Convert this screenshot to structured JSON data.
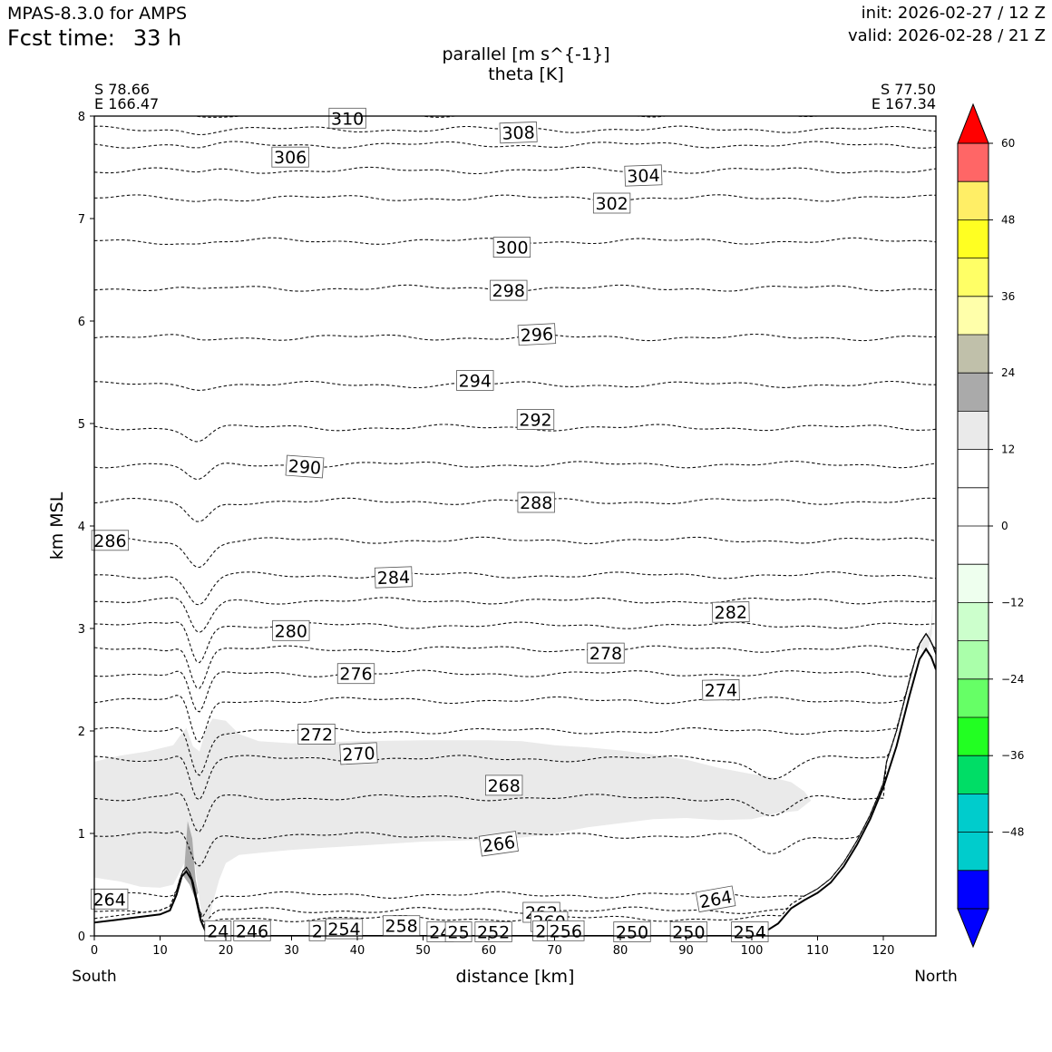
{
  "header": {
    "model": "MPAS-8.3.0 for AMPS",
    "fcst_label": "Fcst time:",
    "fcst_value": "33 h",
    "init": "init: 2026-02-27 / 12 Z",
    "valid": "valid: 2026-02-28 / 21 Z"
  },
  "chart_data": {
    "type": "contour",
    "title_line1": "parallel [m s^{-1}]",
    "title_line2": "theta [K]",
    "xlabel": "distance [km]",
    "ylabel": "km MSL",
    "xlim": [
      0,
      128
    ],
    "ylim": [
      0,
      8
    ],
    "xticks": [
      0,
      10,
      20,
      30,
      40,
      50,
      60,
      70,
      80,
      90,
      100,
      110,
      120
    ],
    "yticks": [
      0,
      1,
      2,
      3,
      4,
      5,
      6,
      7,
      8
    ],
    "start_point": {
      "lat": "S 78.66",
      "lon": "E 166.47",
      "end_label": "South"
    },
    "end_point": {
      "lat": "S 77.50",
      "lon": "E 167.34",
      "end_label": "North"
    },
    "colorbar": {
      "ticks": [
        60,
        48,
        36,
        24,
        12,
        0,
        -12,
        -24,
        -36,
        -48
      ],
      "tick_labels": [
        "60",
        "48",
        "36",
        "24",
        "12",
        "0",
        "−12",
        "−24",
        "−36",
        "−48"
      ],
      "min": -60,
      "max": 60,
      "levels": [
        {
          "from": -54,
          "to": -48,
          "color": "#00cccc"
        },
        {
          "from": -48,
          "to": -42,
          "color": "#00cccc"
        },
        {
          "from": -42,
          "to": -36,
          "color": "#00dd66"
        },
        {
          "from": -36,
          "to": -30,
          "color": "#22ff22"
        },
        {
          "from": -30,
          "to": -24,
          "color": "#66ff66"
        },
        {
          "from": -24,
          "to": -18,
          "color": "#aaffaa"
        },
        {
          "from": -18,
          "to": -12,
          "color": "#ccffcc"
        },
        {
          "from": -12,
          "to": -6,
          "color": "#eeffee"
        },
        {
          "from": -6,
          "to": 0,
          "color": "#ffffff"
        },
        {
          "from": 0,
          "to": 6,
          "color": "#ffffff"
        },
        {
          "from": 6,
          "to": 12,
          "color": "#ffffff"
        },
        {
          "from": 12,
          "to": 18,
          "color": "#eaeaea"
        },
        {
          "from": 18,
          "to": 24,
          "color": "#aaaaaa"
        },
        {
          "from": 24,
          "to": 30,
          "color": "#c0c0aa"
        },
        {
          "from": 30,
          "to": 36,
          "color": "#ffffaa"
        },
        {
          "from": 36,
          "to": 42,
          "color": "#ffff66"
        },
        {
          "from": 42,
          "to": 48,
          "color": "#ffff22"
        },
        {
          "from": 48,
          "to": 54,
          "color": "#ffee66"
        },
        {
          "from": 54,
          "to": 60,
          "color": "#ff6666"
        }
      ],
      "under_color": "#0000ff",
      "over_color": "#ff0000"
    },
    "terrain": [
      [
        0,
        0.13
      ],
      [
        5,
        0.17
      ],
      [
        10,
        0.21
      ],
      [
        11.5,
        0.25
      ],
      [
        12.5,
        0.4
      ],
      [
        13.3,
        0.58
      ],
      [
        14,
        0.63
      ],
      [
        14.8,
        0.55
      ],
      [
        15.5,
        0.35
      ],
      [
        16.2,
        0.15
      ],
      [
        17,
        0.03
      ],
      [
        18,
        0
      ],
      [
        100,
        0
      ],
      [
        102,
        0.04
      ],
      [
        104,
        0.12
      ],
      [
        106,
        0.27
      ],
      [
        108,
        0.35
      ],
      [
        110,
        0.42
      ],
      [
        112,
        0.52
      ],
      [
        114,
        0.68
      ],
      [
        116,
        0.89
      ],
      [
        118,
        1.14
      ],
      [
        120,
        1.45
      ],
      [
        122,
        1.85
      ],
      [
        124,
        2.35
      ],
      [
        125.5,
        2.7
      ],
      [
        126.5,
        2.8
      ],
      [
        127.3,
        2.72
      ],
      [
        128,
        2.6
      ]
    ],
    "wind_shading": [
      {
        "level": "12-18",
        "points": [
          [
            0,
            1.7
          ],
          [
            4,
            1.76
          ],
          [
            8,
            1.8
          ],
          [
            10,
            1.83
          ],
          [
            12,
            1.86
          ],
          [
            13,
            1.95
          ],
          [
            14,
            2.03
          ],
          [
            15,
            1.85
          ],
          [
            16,
            1.8
          ],
          [
            17,
            2.02
          ],
          [
            18,
            2.12
          ],
          [
            20,
            2.1
          ],
          [
            22,
            1.97
          ],
          [
            25,
            1.9
          ],
          [
            30,
            1.88
          ],
          [
            40,
            1.9
          ],
          [
            50,
            1.91
          ],
          [
            60,
            1.91
          ],
          [
            65,
            1.9
          ],
          [
            70,
            1.86
          ],
          [
            75,
            1.84
          ],
          [
            80,
            1.81
          ],
          [
            85,
            1.77
          ],
          [
            90,
            1.72
          ],
          [
            95,
            1.64
          ],
          [
            100,
            1.58
          ],
          [
            103,
            1.55
          ],
          [
            106,
            1.5
          ],
          [
            108,
            1.41
          ],
          [
            109,
            1.32
          ],
          [
            107,
            1.22
          ],
          [
            104,
            1.2
          ],
          [
            100,
            1.14
          ],
          [
            95,
            1.13
          ],
          [
            90,
            1.15
          ],
          [
            85,
            1.14
          ],
          [
            80,
            1.1
          ],
          [
            75,
            1.06
          ],
          [
            70,
            1.0
          ],
          [
            65,
            0.96
          ],
          [
            60,
            0.94
          ],
          [
            50,
            0.92
          ],
          [
            40,
            0.88
          ],
          [
            35,
            0.86
          ],
          [
            30,
            0.84
          ],
          [
            25,
            0.81
          ],
          [
            22,
            0.79
          ],
          [
            20,
            0.71
          ],
          [
            19,
            0.55
          ],
          [
            18,
            0.32
          ],
          [
            17.5,
            0.15
          ],
          [
            17,
            0.05
          ],
          [
            16.3,
            0.2
          ],
          [
            15.7,
            0.5
          ],
          [
            15.2,
            0.75
          ],
          [
            14.6,
            0.87
          ],
          [
            14,
            0.75
          ],
          [
            12,
            0.5
          ],
          [
            10,
            0.47
          ],
          [
            7,
            0.48
          ],
          [
            4,
            0.53
          ],
          [
            0,
            0.57
          ]
        ]
      },
      {
        "level": "18-24",
        "points": [
          [
            13.6,
            0.58
          ],
          [
            14.2,
            1.12
          ],
          [
            14.9,
            0.95
          ],
          [
            15.4,
            0.55
          ],
          [
            15.8,
            0.42
          ],
          [
            15.3,
            0.37
          ],
          [
            14.5,
            0.5
          ]
        ]
      },
      {
        "level": "12-18",
        "points": [
          [
            125.5,
            2.82
          ],
          [
            127.2,
            3.0
          ],
          [
            127.6,
            3.35
          ],
          [
            127.4,
            2.95
          ],
          [
            126.6,
            2.75
          ]
        ]
      }
    ],
    "theta_contours": [
      {
        "value": 310,
        "base": 8.02
      },
      {
        "value": 308,
        "base": 7.87
      },
      {
        "value": 306,
        "base": 7.72
      },
      {
        "value": 304,
        "base": 7.47
      },
      {
        "value": 302,
        "base": 7.2
      },
      {
        "value": 300,
        "base": 6.78
      },
      {
        "value": 298,
        "base": 6.32
      },
      {
        "value": 296,
        "base": 5.84
      },
      {
        "value": 294,
        "base": 5.38
      },
      {
        "value": 292,
        "base": 4.96
      },
      {
        "value": 290,
        "base": 4.6
      },
      {
        "value": 288,
        "base": 4.24
      },
      {
        "value": 286,
        "base": 3.86
      },
      {
        "value": 284,
        "base": 3.52
      },
      {
        "value": 282,
        "base": 3.27
      },
      {
        "value": 280,
        "base": 3.03
      },
      {
        "value": 278,
        "base": 2.8
      },
      {
        "value": 276,
        "base": 2.56
      },
      {
        "value": 274,
        "base": 2.3
      },
      {
        "value": 272,
        "base": 2.0
      },
      {
        "value": 270,
        "base": 1.73
      },
      {
        "value": 268,
        "base": 1.35
      },
      {
        "value": 266,
        "base": 0.98
      },
      {
        "value": 264,
        "base": 0.4
      },
      {
        "value": 262,
        "base": 0.25
      },
      {
        "value": 260,
        "base": 0.17
      }
    ],
    "contour_labels": [
      {
        "text": "310",
        "x": 38.5,
        "y": 7.98,
        "rot": 0
      },
      {
        "text": "308",
        "x": 64.5,
        "y": 7.84,
        "rot": -2
      },
      {
        "text": "306",
        "x": 29.8,
        "y": 7.6,
        "rot": 0
      },
      {
        "text": "304",
        "x": 83.5,
        "y": 7.42,
        "rot": -2
      },
      {
        "text": "302",
        "x": 78.7,
        "y": 7.15,
        "rot": 0
      },
      {
        "text": "300",
        "x": 63.5,
        "y": 6.72,
        "rot": 0
      },
      {
        "text": "298",
        "x": 63.0,
        "y": 6.3,
        "rot": 0
      },
      {
        "text": "296",
        "x": 67.3,
        "y": 5.87,
        "rot": -3
      },
      {
        "text": "294",
        "x": 57.9,
        "y": 5.42,
        "rot": 0
      },
      {
        "text": "292",
        "x": 67.1,
        "y": 5.04,
        "rot": 0
      },
      {
        "text": "290",
        "x": 32.0,
        "y": 4.58,
        "rot": 4
      },
      {
        "text": "288",
        "x": 67.2,
        "y": 4.23,
        "rot": 0
      },
      {
        "text": "286",
        "x": 2.4,
        "y": 3.86,
        "rot": 0
      },
      {
        "text": "284",
        "x": 45.5,
        "y": 3.5,
        "rot": -2
      },
      {
        "text": "282",
        "x": 96.8,
        "y": 3.16,
        "rot": -1
      },
      {
        "text": "280",
        "x": 29.9,
        "y": 2.98,
        "rot": 0
      },
      {
        "text": "278",
        "x": 77.8,
        "y": 2.76,
        "rot": 0
      },
      {
        "text": "276",
        "x": 39.8,
        "y": 2.56,
        "rot": 0
      },
      {
        "text": "274",
        "x": 95.3,
        "y": 2.4,
        "rot": -1
      },
      {
        "text": "272",
        "x": 33.8,
        "y": 1.97,
        "rot": 0
      },
      {
        "text": "270",
        "x": 40.2,
        "y": 1.78,
        "rot": -3
      },
      {
        "text": "268",
        "x": 62.3,
        "y": 1.47,
        "rot": 0
      },
      {
        "text": "266",
        "x": 61.5,
        "y": 0.9,
        "rot": -8
      },
      {
        "text": "264",
        "x": 2.3,
        "y": 0.36,
        "rot": 0
      },
      {
        "text": "264",
        "x": 94.5,
        "y": 0.36,
        "rot": -10
      },
      {
        "text": "262",
        "x": 68.0,
        "y": 0.23,
        "rot": 0
      },
      {
        "text": "260",
        "x": 69.2,
        "y": 0.14,
        "rot": 0
      },
      {
        "text": "24",
        "x": 18.8,
        "y": 0.05,
        "rot": 0
      },
      {
        "text": "246",
        "x": 24.0,
        "y": 0.05,
        "rot": 0
      },
      {
        "text": "2",
        "x": 33.9,
        "y": 0.05,
        "rot": 0
      },
      {
        "text": "254",
        "x": 38.0,
        "y": 0.07,
        "rot": 0
      },
      {
        "text": "258",
        "x": 46.7,
        "y": 0.1,
        "rot": 0
      },
      {
        "text": "24",
        "x": 52.6,
        "y": 0.04,
        "rot": 0
      },
      {
        "text": "25",
        "x": 55.4,
        "y": 0.04,
        "rot": 0
      },
      {
        "text": "252",
        "x": 60.7,
        "y": 0.04,
        "rot": 0
      },
      {
        "text": "2",
        "x": 67.9,
        "y": 0.05,
        "rot": 0
      },
      {
        "text": "256",
        "x": 71.7,
        "y": 0.05,
        "rot": 0
      },
      {
        "text": "250",
        "x": 81.8,
        "y": 0.04,
        "rot": 0
      },
      {
        "text": "250",
        "x": 90.4,
        "y": 0.04,
        "rot": 0
      },
      {
        "text": "254",
        "x": 99.7,
        "y": 0.04,
        "rot": 0
      }
    ]
  }
}
